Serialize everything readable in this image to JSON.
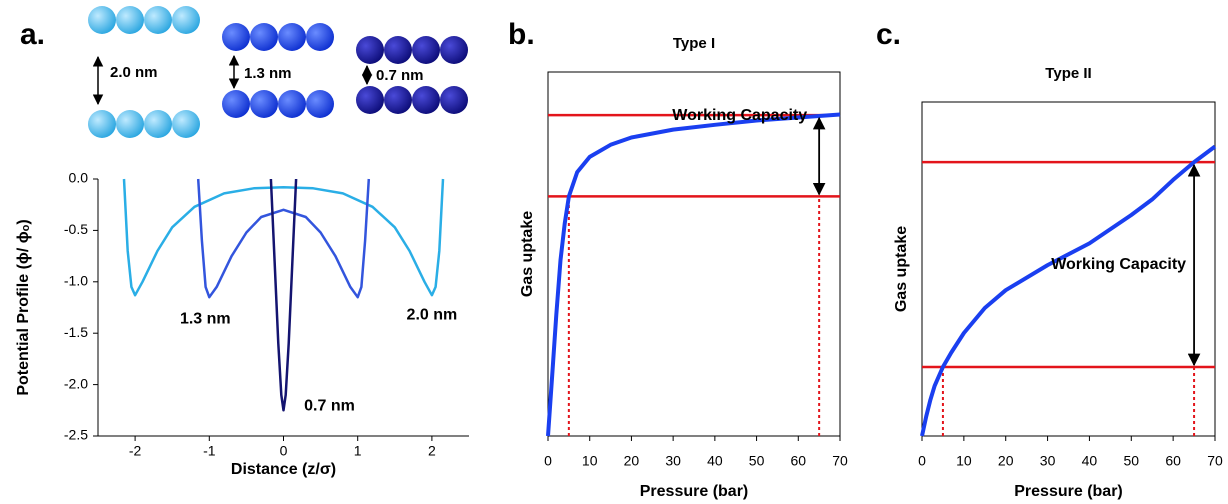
{
  "chart_data": [
    {
      "type": "line",
      "label": "a.",
      "xlabel": "Distance (z/σ)",
      "ylabel": "Potential Profile (ϕ/ ϕₒ)",
      "xlim": [
        -2.5,
        2.5
      ],
      "ylim": [
        -2.5,
        0
      ],
      "xticks": [
        -2,
        -1,
        0,
        1,
        2
      ],
      "yticks": [
        {
          "value": 0,
          "label": "0.0"
        },
        -0.5,
        {
          "value": -1,
          "label": "-1.0"
        },
        -1.5,
        {
          "value": -2,
          "label": "-2.0"
        },
        -2.5
      ],
      "series": [
        {
          "name": "2.0 nm",
          "color": "#2aaee6",
          "x": [
            -2.15,
            -2.1,
            -2.05,
            -2.0,
            -1.9,
            -1.7,
            -1.5,
            -1.2,
            -0.8,
            -0.4,
            0,
            0.4,
            0.8,
            1.2,
            1.5,
            1.7,
            1.9,
            2.0,
            2.05,
            2.1,
            2.15
          ],
          "values": [
            0,
            -0.7,
            -1.05,
            -1.13,
            -1.0,
            -0.7,
            -0.47,
            -0.27,
            -0.14,
            -0.09,
            -0.08,
            -0.09,
            -0.14,
            -0.27,
            -0.47,
            -0.7,
            -1.0,
            -1.13,
            -1.05,
            -0.7,
            0
          ]
        },
        {
          "name": "1.3 nm",
          "color": "#3355dd",
          "x": [
            -1.15,
            -1.1,
            -1.05,
            -1.0,
            -0.9,
            -0.7,
            -0.5,
            -0.3,
            0,
            0.3,
            0.5,
            0.7,
            0.9,
            1.0,
            1.05,
            1.1,
            1.15
          ],
          "values": [
            0,
            -0.6,
            -1.05,
            -1.15,
            -1.05,
            -0.75,
            -0.52,
            -0.37,
            -0.3,
            -0.37,
            -0.52,
            -0.75,
            -1.05,
            -1.15,
            -1.05,
            -0.6,
            0
          ]
        },
        {
          "name": "0.7 nm",
          "color": "#141470",
          "x": [
            -0.17,
            -0.12,
            -0.07,
            -0.03,
            0,
            0.03,
            0.07,
            0.12,
            0.17
          ],
          "values": [
            0,
            -0.8,
            -1.6,
            -2.1,
            -2.25,
            -2.1,
            -1.6,
            -0.8,
            0
          ]
        }
      ]
    },
    {
      "type": "line",
      "label": "b.",
      "title": "Type I",
      "xlabel": "Pressure (bar)",
      "ylabel": "Gas uptake",
      "xlim": [
        0,
        70
      ],
      "ylim": [
        0,
        6
      ],
      "xticks": [
        0,
        10,
        20,
        30,
        40,
        50,
        60,
        70
      ],
      "frame": true,
      "series": [
        {
          "color": "#1a3ff0",
          "x": [
            0,
            0.5,
            1,
            2,
            3,
            4,
            5,
            7,
            10,
            15,
            20,
            30,
            40,
            50,
            60,
            70
          ],
          "values": [
            0,
            0.5,
            1.0,
            2.0,
            2.9,
            3.5,
            3.95,
            4.35,
            4.6,
            4.8,
            4.92,
            5.05,
            5.13,
            5.2,
            5.25,
            5.3
          ]
        }
      ],
      "hlines": [
        3.95,
        5.29
      ],
      "vlines": [
        5,
        65
      ],
      "ref_color": "#e3141b",
      "annotation": "Working Capacity"
    },
    {
      "type": "line",
      "label": "c.",
      "title": "Type II",
      "xlabel": "Pressure (bar)",
      "ylabel": "Gas uptake",
      "xlim": [
        0,
        70
      ],
      "ylim": [
        0,
        6
      ],
      "xticks": [
        0,
        10,
        20,
        30,
        40,
        50,
        60,
        70
      ],
      "frame": true,
      "series": [
        {
          "color": "#1a3ff0",
          "x": [
            0,
            1,
            2,
            3,
            5,
            7,
            10,
            15,
            20,
            30,
            40,
            50,
            55,
            60,
            65,
            70
          ],
          "values": [
            0,
            0.35,
            0.65,
            0.9,
            1.24,
            1.5,
            1.85,
            2.3,
            2.62,
            3.07,
            3.46,
            3.97,
            4.25,
            4.6,
            4.92,
            5.2
          ]
        }
      ],
      "hlines": [
        1.24,
        4.92
      ],
      "vlines": [
        5,
        65
      ],
      "ref_color": "#e3141b",
      "annotation": "Working Capacity"
    }
  ]
}
